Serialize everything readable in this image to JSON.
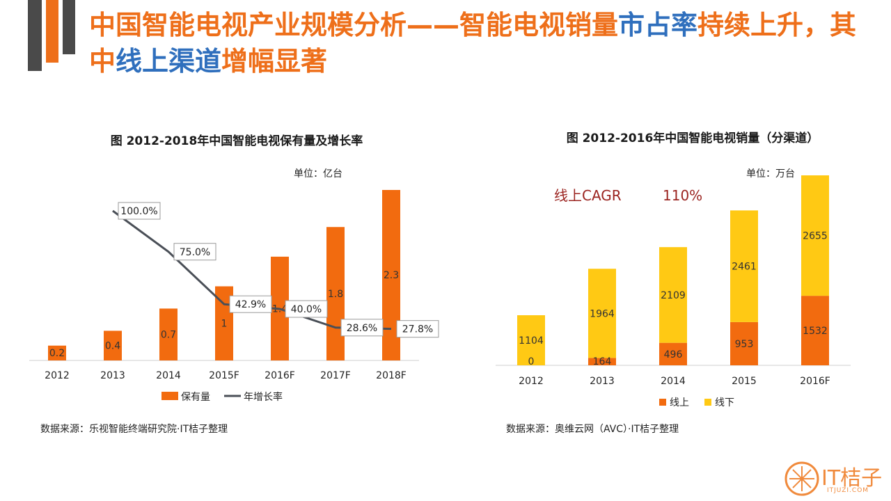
{
  "slide": {
    "title_parts": [
      {
        "text": "中国智能电视产业规模分析——智能电视销量",
        "color": "orange"
      },
      {
        "text": "市占率",
        "color": "blue"
      },
      {
        "text": "持续上升，其中",
        "color": "orange"
      },
      {
        "text": "线上渠道",
        "color": "blue"
      },
      {
        "text": "增幅显著",
        "color": "orange"
      }
    ],
    "accent_colors": {
      "orange": "#ee6f1a",
      "blue": "#2f6fbd",
      "grey": "#4a4a4a"
    }
  },
  "logo": {
    "name": "IT桔子",
    "url": "ITJUZI.COM"
  },
  "chart_data": [
    {
      "type": "bar+line",
      "title": "图 2012-2018年中国智能电视保有量及增长率",
      "unit": "单位：亿台",
      "categories": [
        "2012",
        "2013",
        "2014",
        "2015F",
        "2016F",
        "2017F",
        "2018F"
      ],
      "series": [
        {
          "name": "保有量",
          "type": "bar",
          "color": "#f26b0f",
          "values": [
            0.2,
            0.4,
            0.7,
            1,
            1.4,
            1.8,
            2.3
          ]
        },
        {
          "name": "年增长率",
          "type": "line",
          "color": "#4a4f57",
          "values": [
            null,
            100.0,
            75.0,
            42.9,
            40.0,
            28.6,
            27.8
          ],
          "labels": [
            "",
            "100.0%",
            "75.0%",
            "42.9%",
            "40.0%",
            "28.6%",
            "27.8%"
          ]
        }
      ],
      "ylim": [
        0,
        2.3
      ],
      "line_ylim": [
        0,
        100
      ],
      "legend": [
        "保有量",
        "年增长率"
      ],
      "source": "数据来源：乐视智能终端研究院·IT桔子整理"
    },
    {
      "type": "stacked-bar",
      "title": "图 2012-2016年中国智能电视销量（分渠道）",
      "unit": "单位：万台",
      "annotation_label": "线上CAGR",
      "annotation_value": "110%",
      "categories": [
        "2012",
        "2013",
        "2014",
        "2015",
        "2016F"
      ],
      "series": [
        {
          "name": "线上",
          "color": "#f26b0f",
          "values": [
            0,
            164,
            496,
            953,
            1532
          ]
        },
        {
          "name": "线下",
          "color": "#ffc914",
          "values": [
            1104,
            1964,
            2109,
            2461,
            2655
          ]
        }
      ],
      "ylim": [
        0,
        4187
      ],
      "legend": [
        "线上",
        "线下"
      ],
      "source": "数据来源：奥维云网（AVC）·IT桔子整理"
    }
  ]
}
